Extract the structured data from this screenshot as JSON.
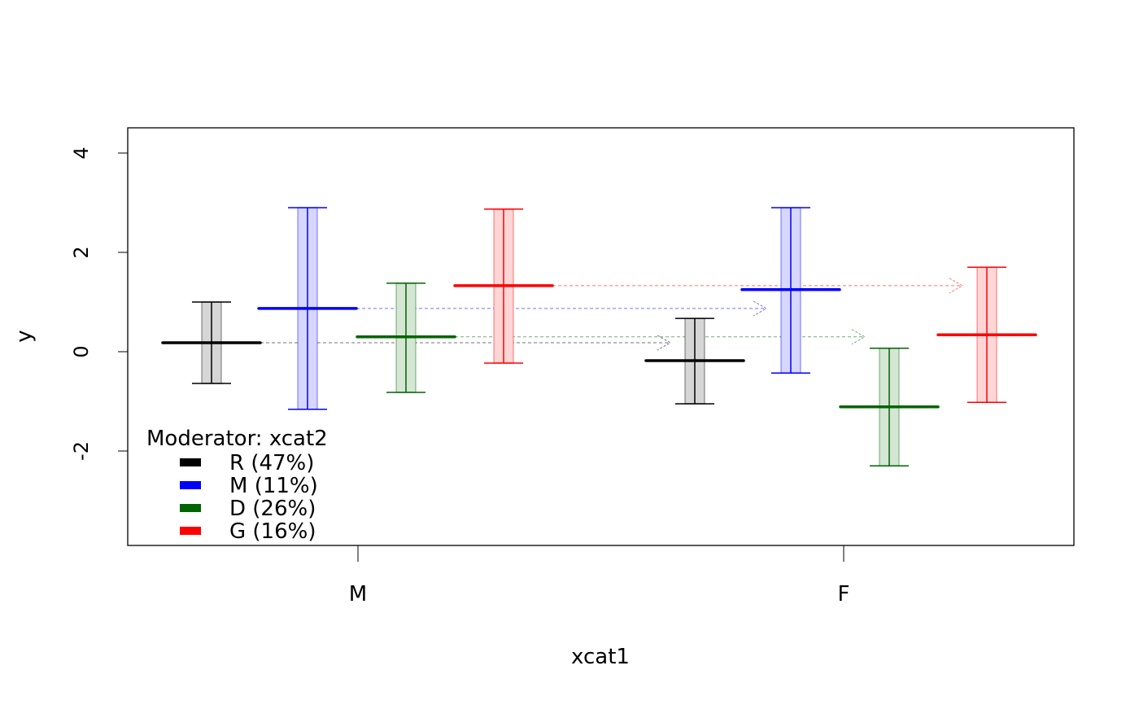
{
  "chart_data": {
    "type": "errorbar",
    "title": "",
    "xlabel": "xcat1",
    "ylabel": "y",
    "ylim": [
      -3.9,
      4.5
    ],
    "yticks": [
      -2,
      0,
      2,
      4
    ],
    "ytick_labels": [
      "-2",
      "0",
      "2",
      "4"
    ],
    "categories": [
      "M",
      "F"
    ],
    "legend": {
      "title": "Moderator: xcat2",
      "position": "bottom-left",
      "entries": [
        "R (47%)",
        "M (11%)",
        "D (26%)",
        "G (16%)"
      ]
    },
    "series": [
      {
        "name": "R",
        "color": "#000000",
        "fill": "#d6d6d6",
        "mean": [
          0.18,
          -0.18
        ],
        "lower": [
          -0.64,
          -1.05
        ],
        "upper": [
          1.0,
          0.67
        ]
      },
      {
        "name": "M",
        "color": "#0000ff",
        "fill": "#d6d6ff",
        "mean": [
          0.87,
          1.25
        ],
        "lower": [
          -1.16,
          -0.43
        ],
        "upper": [
          2.9,
          2.9
        ]
      },
      {
        "name": "D",
        "color": "#006400",
        "fill": "#d5e6d5",
        "mean": [
          0.3,
          -1.11
        ],
        "lower": [
          -0.82,
          -2.3
        ],
        "upper": [
          1.38,
          0.07
        ]
      },
      {
        "name": "G",
        "color": "#ff0000",
        "fill": "#ffd6d6",
        "mean": [
          1.33,
          0.34
        ],
        "lower": [
          -0.23,
          -1.02
        ],
        "upper": [
          2.87,
          1.7
        ]
      }
    ]
  }
}
